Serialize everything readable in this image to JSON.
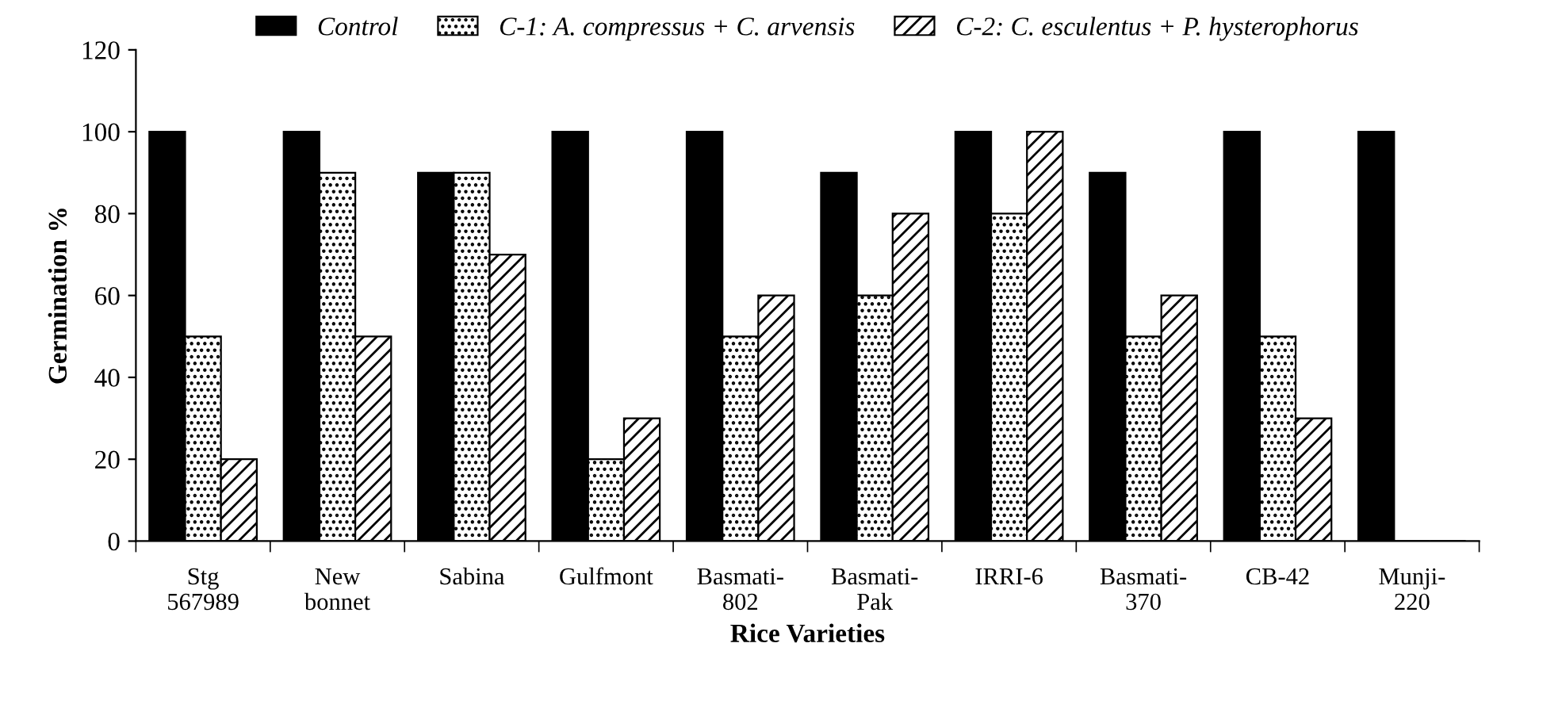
{
  "chart_data": {
    "type": "bar",
    "xlabel": "Rice Varieties",
    "ylabel": "Germination %",
    "categories": [
      "Stg\n567989",
      "New\nbonnet",
      "Sabina",
      "Gulfmont",
      "Basmati-\n802",
      "Basmati-\nPak",
      "IRRI-6",
      "Basmati-\n370",
      "CB-42",
      "Munji-\n220"
    ],
    "series": [
      {
        "name": "Control",
        "color": "#000000",
        "values": [
          100,
          100,
          90,
          100,
          100,
          90,
          100,
          90,
          100,
          100
        ]
      },
      {
        "name": "C-1: A. compressus + C. arvensis",
        "color": "#000000",
        "values": [
          50,
          90,
          90,
          20,
          50,
          60,
          80,
          50,
          50,
          0
        ]
      },
      {
        "name": "C-2: C. esculentus + P. hysterophorus",
        "color": "#000000",
        "values": [
          20,
          50,
          70,
          30,
          60,
          80,
          100,
          60,
          30,
          0
        ]
      }
    ],
    "ylim": [
      0,
      120
    ],
    "yticks": [
      0,
      20,
      40,
      60,
      80,
      100,
      120
    ],
    "grid": false,
    "legend": "top"
  }
}
